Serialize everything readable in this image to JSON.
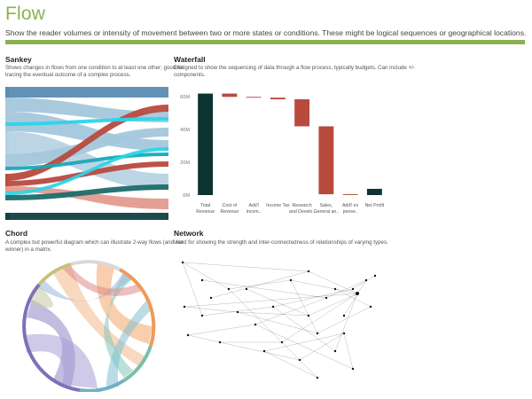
{
  "page": {
    "title": "Flow",
    "subtitle": "Show the reader volumes or intensity of movement between two or more states or conditions. These might be logical sequences or geographical locations."
  },
  "colors": {
    "accent": "#8db04f",
    "waterfall_total": "#0d3333",
    "waterfall_change": "#b84a3e",
    "sankey_dark_teal": "#114040",
    "sankey_blue": "#5a8cb4",
    "sankey_light_blue": "#a4c7dc",
    "sankey_red": "#b84a3e",
    "sankey_salmon": "#e39b8e",
    "sankey_cyan": "#2dd4e8"
  },
  "sankey": {
    "title": "Sankey",
    "desc_line1": "Shows changes in flows from one condition to at least one other; good for",
    "desc_line2": "tracing the eventual outcome of a complex process."
  },
  "waterfall": {
    "title": "Waterfall",
    "desc_line1": "Designed to show the sequencing of data through a flow process, typically budgets. Can include +/-",
    "desc_line2": "components.",
    "chart_data": {
      "type": "bar",
      "categories": [
        [
          "Total",
          "Revenue"
        ],
        [
          "Cost of",
          "Revenue"
        ],
        [
          "Add'l",
          "incom.."
        ],
        [
          "Income Tax"
        ],
        [
          "Research",
          "and Develo.."
        ],
        [
          "Sales,",
          "General an.."
        ],
        [
          "Add'l ex",
          "pense.."
        ],
        [
          "Net Profit"
        ]
      ],
      "start": [
        0,
        62,
        60,
        59.5,
        58.5,
        42,
        0.5,
        0
      ],
      "end": [
        62,
        60,
        59.5,
        58.5,
        42,
        0.5,
        0,
        3.8
      ],
      "kind": [
        "total",
        "change",
        "change",
        "change",
        "change",
        "change",
        "change",
        "total"
      ],
      "y_ticks": [
        0,
        20,
        40,
        60
      ],
      "y_tick_labels": [
        "0M",
        "20M",
        "40M",
        "60M"
      ],
      "ylim": [
        0,
        65
      ]
    }
  },
  "chord": {
    "title": "Chord",
    "desc_line1": "A complex but powerful diagram which can illustrate 2-way flows (and net",
    "desc_line2": "winner) in a matrix."
  },
  "network": {
    "title": "Network",
    "desc_line1": "Used for showing the strength and inter-connectedness of relationships of varying types."
  }
}
